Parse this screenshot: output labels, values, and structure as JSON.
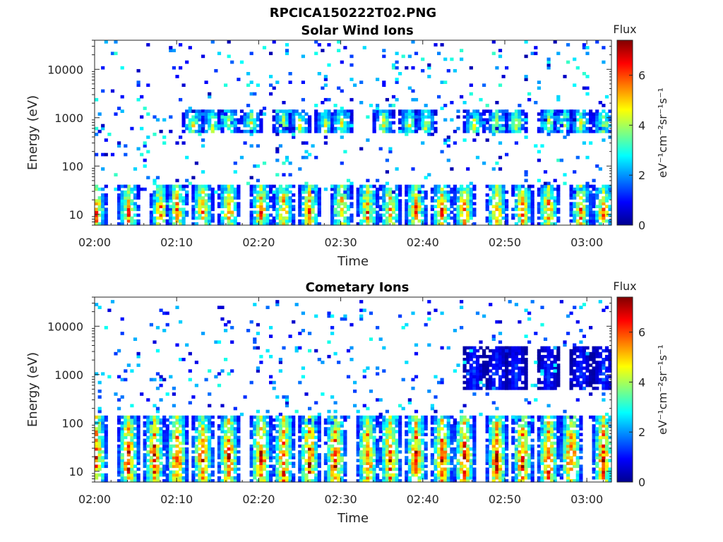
{
  "figure_title": "RPCICA150222T02.PNG",
  "chart_data": [
    {
      "type": "heatmap",
      "title": "Solar Wind Ions",
      "xlabel": "Time",
      "ylabel": "Energy (eV)",
      "x_ticks": [
        "02:00",
        "02:10",
        "02:20",
        "02:30",
        "02:40",
        "02:50",
        "03:00"
      ],
      "xlim": [
        "02:00",
        "03:03"
      ],
      "y_scale": "log",
      "y_ticks": [
        10,
        100,
        1000,
        10000
      ],
      "ylim": [
        6,
        40000
      ],
      "colorbar": {
        "title": "Flux",
        "label": "eV⁻¹cm⁻²sr⁻¹s⁻¹",
        "ticks": [
          0,
          2,
          4,
          6
        ],
        "range": [
          0,
          7.4
        ],
        "colormap": "jet"
      },
      "features": [
        {
          "type": "low_energy_bursts",
          "energy_range": [
            6,
            35
          ],
          "times": [
            "02:00",
            "02:04",
            "02:08",
            "02:10",
            "02:13",
            "02:16",
            "02:20",
            "02:23",
            "02:26",
            "02:30",
            "02:33",
            "02:36",
            "02:39",
            "02:42",
            "02:45",
            "02:49",
            "02:52",
            "02:55",
            "02:59",
            "03:02"
          ],
          "peak_flux": 6.2
        },
        {
          "type": "solar_wind_band",
          "energy_range": [
            500,
            1200
          ],
          "times": [
            "02:12",
            "02:14",
            "02:16",
            "02:19",
            "02:23",
            "02:25",
            "02:28",
            "02:30",
            "02:35",
            "02:38",
            "02:40",
            "02:46",
            "02:49",
            "02:51",
            "02:55",
            "02:57",
            "02:59",
            "03:02"
          ],
          "peak_flux": 4.6
        },
        {
          "type": "sparse_background",
          "energy_range": [
            30,
            40000
          ],
          "flux_range": [
            0.3,
            3.2
          ]
        }
      ]
    },
    {
      "type": "heatmap",
      "title": "Cometary Ions",
      "xlabel": "Time",
      "ylabel": "Energy (eV)",
      "x_ticks": [
        "02:00",
        "02:10",
        "02:20",
        "02:30",
        "02:40",
        "02:50",
        "03:00"
      ],
      "xlim": [
        "02:00",
        "03:03"
      ],
      "y_scale": "log",
      "y_ticks": [
        10,
        100,
        1000,
        10000
      ],
      "ylim": [
        6,
        40000
      ],
      "colorbar": {
        "title": "Flux",
        "label": "eV⁻¹cm⁻²sr⁻¹s⁻¹",
        "ticks": [
          0,
          2,
          4,
          6
        ],
        "range": [
          0,
          7.4
        ],
        "colormap": "jet"
      },
      "features": [
        {
          "type": "cometary_bursts",
          "energy_range": [
            6,
            120
          ],
          "times": [
            "02:00",
            "02:04",
            "02:07",
            "02:10",
            "02:13",
            "02:16",
            "02:20",
            "02:23",
            "02:26",
            "02:29",
            "02:33",
            "02:36",
            "02:39",
            "02:42",
            "02:45",
            "02:49",
            "02:52",
            "02:55",
            "02:58",
            "03:02"
          ],
          "peak_flux": 7.0
        },
        {
          "type": "high_energy_band",
          "energy_range": [
            500,
            3000
          ],
          "times": [
            "02:46",
            "02:49",
            "02:51",
            "02:55",
            "02:59",
            "03:02"
          ],
          "peak_flux": 1.5
        },
        {
          "type": "sparse_background",
          "energy_range": [
            100,
            30000
          ],
          "flux_range": [
            0.5,
            3.0
          ]
        }
      ]
    }
  ]
}
